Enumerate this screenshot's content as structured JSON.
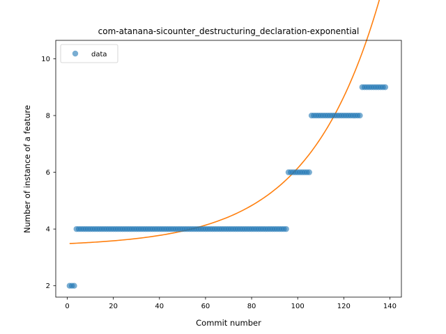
{
  "chart_data": {
    "type": "scatter",
    "title": "com-atanana-sicounter_destructuring_declaration-exponential",
    "xlabel": "Commit number",
    "ylabel": "Number of instance of a feature",
    "xlim": [
      -5,
      145
    ],
    "ylim": [
      1.6,
      10.65
    ],
    "xticks": [
      0,
      20,
      40,
      60,
      80,
      100,
      120,
      140
    ],
    "yticks": [
      2,
      4,
      6,
      8,
      10
    ],
    "grid": false,
    "legend": {
      "placement": "top-left",
      "entries": [
        "data"
      ]
    },
    "colors": {
      "data": "#1f77b4",
      "fit": "#ff7f0e"
    },
    "series": [
      {
        "name": "data",
        "kind": "points",
        "segments": [
          {
            "x_start": 1,
            "x_end": 3,
            "y": 2
          },
          {
            "x_start": 4,
            "x_end": 95,
            "y": 4
          },
          {
            "x_start": 96,
            "x_end": 105,
            "y": 6
          },
          {
            "x_start": 106,
            "x_end": 127,
            "y": 8
          },
          {
            "x_start": 128,
            "x_end": 138,
            "y": 9
          }
        ]
      },
      {
        "kind": "line",
        "model": "exponential",
        "params": {
          "a": 0.1096,
          "b": 0.0323,
          "c": 3.376
        },
        "x_range": [
          1,
          138
        ]
      }
    ]
  }
}
